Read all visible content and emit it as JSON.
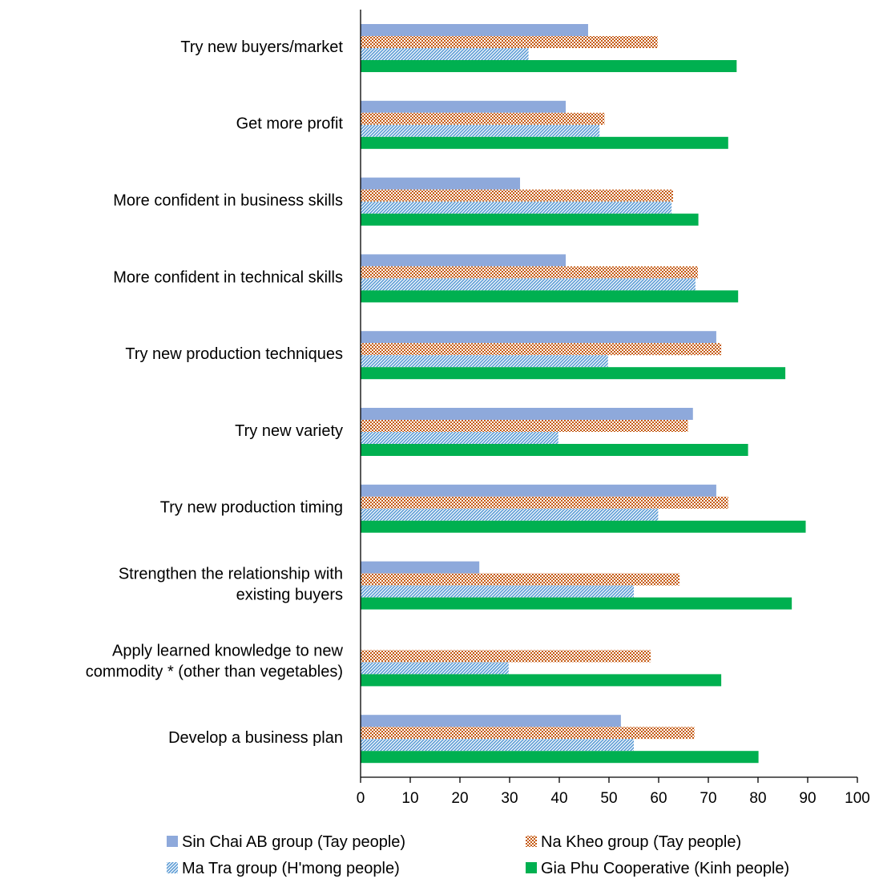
{
  "chart_data": {
    "type": "bar",
    "orientation": "horizontal",
    "title": "",
    "xlabel": "",
    "ylabel": "",
    "xlim": [
      0,
      100
    ],
    "xticks": [
      0,
      10,
      20,
      30,
      40,
      50,
      60,
      70,
      80,
      90,
      100
    ],
    "grid": false,
    "legend_position": "bottom",
    "categories": [
      [
        "Try new buyers/market"
      ],
      [
        "Get more profit"
      ],
      [
        "More confident in business skills"
      ],
      [
        "More confident in technical skills"
      ],
      [
        "Try new production techniques"
      ],
      [
        "Try new variety"
      ],
      [
        "Try new production timing"
      ],
      [
        "Strengthen the relationship with",
        "existing buyers"
      ],
      [
        "Apply learned knowledge to new",
        "commodity * (other than vegetables)"
      ],
      [
        "Develop a business plan"
      ]
    ],
    "series": [
      {
        "name": "Sin Chai AB group (Tay people)",
        "color": "#8EA9DB",
        "pattern": "solid",
        "values": [
          45.8,
          41.3,
          32.1,
          41.3,
          71.6,
          66.9,
          71.6,
          23.9,
          0,
          52.4
        ]
      },
      {
        "name": "Na Kheo group (Tay people)",
        "color": "#C55A11",
        "pattern": "checker",
        "values": [
          59.8,
          49.1,
          62.9,
          67.9,
          72.6,
          65.9,
          74.0,
          64.2,
          58.4,
          67.2
        ]
      },
      {
        "name": "Ma Tra group (H'mong people)",
        "color": "#5B9BD5",
        "pattern": "diagonal",
        "values": [
          33.8,
          48.1,
          62.6,
          67.4,
          49.8,
          39.8,
          59.9,
          55.0,
          29.8,
          55.0
        ]
      },
      {
        "name": "Gia Phu Cooperative (Kinh people)",
        "color": "#00B050",
        "pattern": "solid",
        "values": [
          75.7,
          74.0,
          68.0,
          76.0,
          85.5,
          78.0,
          89.6,
          86.8,
          72.6,
          80.1
        ]
      }
    ]
  }
}
